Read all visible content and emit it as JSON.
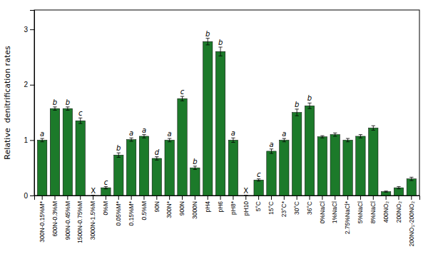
{
  "chart_data": {
    "type": "bar",
    "y_label": "Relative  denitrification rates",
    "categories": [
      "300N-0.15%M*",
      "600N-0.3%M",
      "900N-0.45%M",
      "1500N-0.75%M",
      "3000N-1.5%M",
      "0%M",
      "0.05%M*",
      "0.15%M*",
      "0.5%M",
      "90N",
      "300N*",
      "900N",
      "3000N",
      "pH4",
      "pH6",
      "pH8*",
      "pH10",
      "5°C",
      "15°C",
      "23°C*",
      "30°C",
      "36°C",
      "0%NaCl",
      "1%NaCl",
      "2.75%NaCl*",
      "5%NaCl",
      "8%NaCl",
      "400NO₂",
      "200NO₂",
      "200NO₃-200NO₂"
    ],
    "values": [
      1.0,
      1.57,
      1.57,
      1.35,
      0.0,
      0.14,
      0.73,
      1.01,
      1.07,
      0.67,
      1.0,
      1.75,
      0.5,
      2.78,
      2.6,
      1.0,
      0.0,
      0.28,
      0.8,
      1.0,
      1.5,
      1.62,
      1.06,
      1.1,
      1.0,
      1.07,
      1.22,
      0.07,
      0.14,
      0.3
    ],
    "errors": [
      0.03,
      0.03,
      0.03,
      0.05,
      0.0,
      0.02,
      0.04,
      0.03,
      0.03,
      0.03,
      0.03,
      0.04,
      0.03,
      0.06,
      0.08,
      0.04,
      0.0,
      0.02,
      0.04,
      0.03,
      0.06,
      0.05,
      0.02,
      0.03,
      0.03,
      0.03,
      0.04,
      0.01,
      0.02,
      0.03
    ],
    "letters": [
      "a",
      "b",
      "b",
      "c",
      "X",
      "c",
      "b",
      "a",
      "a",
      "d",
      "a",
      "c",
      "b",
      "b",
      "b",
      "a",
      "X",
      "c",
      "a",
      "a",
      "b",
      "b",
      null,
      null,
      null,
      null,
      null,
      null,
      null,
      null
    ],
    "color": "#1c7a2a",
    "ylim": [
      0,
      3.35
    ],
    "yticks": [
      0,
      1,
      2,
      3
    ]
  }
}
